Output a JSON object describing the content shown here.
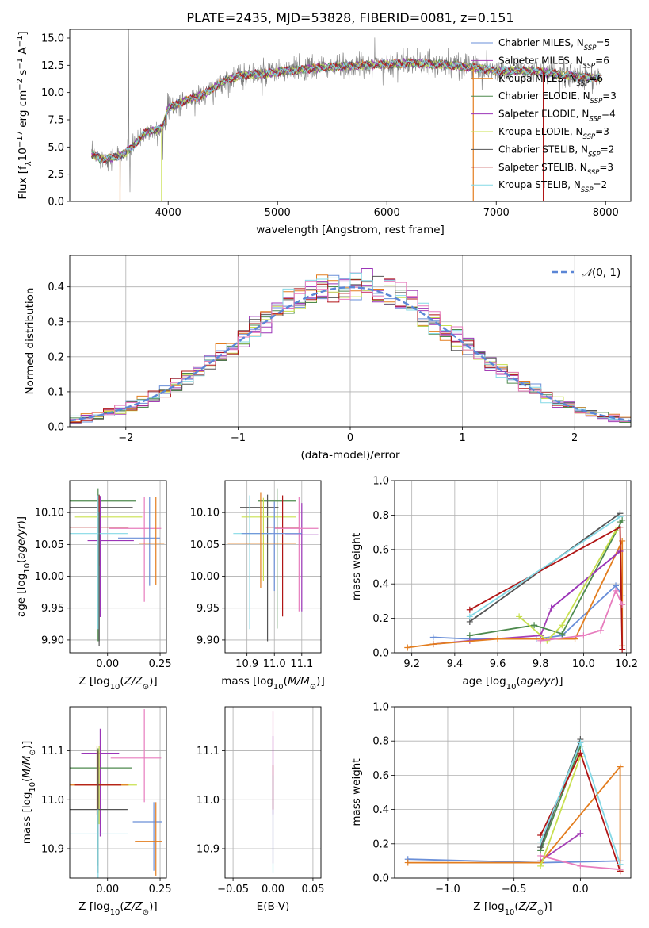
{
  "colors": {
    "Chabrier MILES": "#6a8fd8",
    "Salpeter MILES": "#a43fb5",
    "Kroupa MILES": "#e37d1e",
    "Chabrier ELODIE": "#4e8a4e",
    "Salpeter ELODIE": "#9b35b8",
    "Kroupa ELODIE": "#c8e04e",
    "Chabrier STELIB": "#555555",
    "Salpeter STELIB": "#b01515",
    "Kroupa STELIB": "#84d9e6",
    "spectrum": "#808080",
    "normal": "#5b86d6",
    "pink": "#e77cbd"
  },
  "legend_entries": [
    {
      "key": "Chabrier MILES",
      "label": "Chabrier MILES, N",
      "sub": "SSP",
      "tail": "=5"
    },
    {
      "key": "Salpeter MILES",
      "label": "Salpeter MILES, N",
      "sub": "SSP",
      "tail": "=6"
    },
    {
      "key": "Kroupa MILES",
      "label": "Kroupa MILES, N",
      "sub": "SSP",
      "tail": "=6"
    },
    {
      "key": "Chabrier ELODIE",
      "label": "Chabrier ELODIE, N",
      "sub": "SSP",
      "tail": "=3"
    },
    {
      "key": "Salpeter ELODIE",
      "label": "Salpeter ELODIE, N",
      "sub": "SSP",
      "tail": "=4"
    },
    {
      "key": "Kroupa ELODIE",
      "label": "Kroupa ELODIE, N",
      "sub": "SSP",
      "tail": "=3"
    },
    {
      "key": "Chabrier STELIB",
      "label": "Chabrier STELIB, N",
      "sub": "SSP",
      "tail": "=2"
    },
    {
      "key": "Salpeter STELIB",
      "label": "Salpeter STELIB, N",
      "sub": "SSP",
      "tail": "=3"
    },
    {
      "key": "Kroupa STELIB",
      "label": "Kroupa STELIB, N",
      "sub": "SSP",
      "tail": "=2"
    }
  ],
  "chart_data": [
    {
      "id": "spectrum",
      "type": "line",
      "title": "PLATE=2435, MJD=53828, FIBERID=0081, z=0.151",
      "xlabel": "wavelength [Angstrom, rest frame]",
      "ylabel": "Flux [f_λ 10^-17 erg cm^-2 s^-1 A^-1]",
      "xlim": [
        3100,
        8230
      ],
      "ylim": [
        0,
        15.8
      ],
      "xticks": [
        4000,
        5000,
        6000,
        7000,
        8000
      ],
      "yticks": [
        0.0,
        2.5,
        5.0,
        7.5,
        10.0,
        12.5,
        15.0
      ],
      "continuum": {
        "x": [
          3300,
          3400,
          3500,
          3600,
          3700,
          3800,
          3900,
          3950,
          4000,
          4100,
          4200,
          4300,
          4400,
          4500,
          4600,
          4700,
          4800,
          4900,
          5000,
          5200,
          5400,
          5600,
          5800,
          6000,
          6200,
          6400,
          6600,
          6800,
          7000,
          7200,
          7400,
          7600,
          7800,
          8000
        ],
        "y": [
          4.3,
          3.9,
          4.0,
          4.4,
          5.3,
          6.4,
          6.6,
          6.8,
          8.6,
          9.0,
          9.4,
          9.7,
          10.3,
          11.0,
          11.4,
          11.6,
          11.7,
          11.7,
          11.9,
          12.1,
          12.3,
          12.4,
          12.5,
          12.6,
          12.7,
          12.6,
          12.5,
          12.3,
          12.0,
          12.0,
          11.9,
          11.6,
          11.4,
          11.3
        ]
      },
      "series_names": [
        "Chabrier MILES",
        "Salpeter MILES",
        "Kroupa MILES",
        "Chabrier ELODIE",
        "Salpeter ELODIE",
        "Kroupa ELODIE",
        "Chabrier STELIB",
        "Salpeter STELIB",
        "Kroupa STELIB"
      ],
      "legend_position": "upper right"
    },
    {
      "id": "residuals",
      "type": "histogram",
      "xlabel": "(data-model)/error",
      "ylabel": "Normed distribution",
      "xlim": [
        -2.5,
        2.5
      ],
      "ylim": [
        0,
        0.49
      ],
      "xticks": [
        -2,
        -1,
        0,
        1,
        2
      ],
      "yticks": [
        0.0,
        0.1,
        0.2,
        0.3,
        0.4
      ],
      "bin_width": 0.1,
      "normal_label": "N(0, 1)",
      "legend_position": "upper right",
      "series": [
        "Chabrier MILES",
        "Salpeter MILES",
        "Kroupa MILES",
        "Chabrier ELODIE",
        "Salpeter ELODIE",
        "Kroupa ELODIE",
        "Chabrier STELIB",
        "Salpeter STELIB",
        "Kroupa STELIB",
        "pink"
      ]
    },
    {
      "id": "age_vs_Z",
      "type": "errorbar",
      "xlabel": "Z [log10(Z/Z⊙)]",
      "ylabel": "age  [log10(age/yr)]",
      "xlim": [
        -0.18,
        0.28
      ],
      "ylim": [
        9.88,
        10.15
      ],
      "xticks": [
        0.0,
        0.25
      ],
      "yticks": [
        9.9,
        9.95,
        10.0,
        10.05,
        10.1
      ],
      "points": [
        {
          "key": "Chabrier ELODIE",
          "x": -0.045,
          "xerr": [
            0.14,
            0.18
          ],
          "y": 10.118,
          "yerr": [
            0.22,
            0.02
          ]
        },
        {
          "key": "Chabrier STELIB",
          "x": -0.04,
          "xerr": [
            0.16,
            0.16
          ],
          "y": 10.108,
          "yerr": [
            0.21,
            0.02
          ]
        },
        {
          "key": "Kroupa ELODIE",
          "x": -0.035,
          "xerr": [
            0.12,
            0.2
          ],
          "y": 10.093,
          "yerr": [
            0.07,
            0.03
          ]
        },
        {
          "key": "Salpeter STELIB",
          "x": -0.04,
          "xerr": [
            0.14,
            0.14
          ],
          "y": 10.077,
          "yerr": [
            0.06,
            0.05
          ]
        },
        {
          "key": "Salpeter ELODIE",
          "x": -0.035,
          "xerr": [
            0.06,
            0.16
          ],
          "y": 10.056,
          "yerr": [
            0.12,
            0.07
          ]
        },
        {
          "key": "pink",
          "x": 0.175,
          "xerr": [
            0.17,
            0.08
          ],
          "y": 10.075,
          "yerr": [
            0.115,
            0.05
          ]
        },
        {
          "key": "Kroupa STELIB",
          "x": -0.045,
          "xerr": [
            0.14,
            0.14
          ],
          "y": 10.067,
          "yerr": [
            0.15,
            0.06
          ]
        },
        {
          "key": "Chabrier MILES",
          "x": 0.2,
          "xerr": [
            0.15,
            0.05
          ],
          "y": 10.06,
          "yerr": [
            0.075,
            0.065
          ]
        },
        {
          "key": "Kroupa MILES",
          "x": 0.23,
          "xerr": [
            0.08,
            0.04
          ],
          "y": 10.052,
          "yerr": [
            0.065,
            0.073
          ]
        },
        {
          "key": "Chabrier STELIB",
          "x": -0.04,
          "xerr": [
            0.0,
            0.0
          ],
          "y": 10.0,
          "yerr": [
            0.11,
            0.1
          ]
        }
      ]
    },
    {
      "id": "age_vs_mass",
      "type": "errorbar",
      "xlabel": "mass [log10(M/M⊙)]",
      "ylabel": "",
      "xlim": [
        10.82,
        11.17
      ],
      "ylim": [
        9.88,
        10.15
      ],
      "xticks": [
        10.9,
        11.0,
        11.1
      ],
      "yticks": [
        9.9,
        9.95,
        10.0,
        10.05,
        10.1
      ],
      "points": [
        {
          "key": "Chabrier ELODIE",
          "x": 11.01,
          "xerr": [
            0.07,
            0.07
          ],
          "y": 10.118,
          "yerr": [
            0.2,
            0.02
          ]
        },
        {
          "key": "Chabrier STELIB",
          "x": 10.975,
          "xerr": [
            0.1,
            0.04
          ],
          "y": 10.108,
          "yerr": [
            0.21,
            0.02
          ]
        },
        {
          "key": "Kroupa ELODIE",
          "x": 10.96,
          "xerr": [
            0.08,
            0.12
          ],
          "y": 10.093,
          "yerr": [
            0.1,
            0.03
          ]
        },
        {
          "key": "Salpeter STELIB",
          "x": 11.03,
          "xerr": [
            0.06,
            0.06
          ],
          "y": 10.077,
          "yerr": [
            0.14,
            0.05
          ]
        },
        {
          "key": "Salpeter ELODIE",
          "x": 11.1,
          "xerr": [
            0.06,
            0.06
          ],
          "y": 10.065,
          "yerr": [
            0.12,
            0.05
          ]
        },
        {
          "key": "pink",
          "x": 11.09,
          "xerr": [
            0.09,
            0.07
          ],
          "y": 10.075,
          "yerr": [
            0.13,
            0.05
          ]
        },
        {
          "key": "Kroupa STELIB",
          "x": 10.91,
          "xerr": [
            0.06,
            0.08
          ],
          "y": 10.067,
          "yerr": [
            0.15,
            0.06
          ]
        },
        {
          "key": "Chabrier MILES",
          "x": 11.0,
          "xerr": [
            0.12,
            0.1
          ],
          "y": 10.067,
          "yerr": [
            0.09,
            0.05
          ]
        },
        {
          "key": "Kroupa MILES",
          "x": 10.95,
          "xerr": [
            0.12,
            0.13
          ],
          "y": 10.052,
          "yerr": [
            0.07,
            0.08
          ]
        }
      ]
    },
    {
      "id": "mass_weight_vs_age",
      "type": "line",
      "xlabel": "age  [log10(age/yr)]",
      "ylabel": "mass weight",
      "xlim": [
        9.12,
        10.22
      ],
      "ylim": [
        0,
        1.0
      ],
      "xticks": [
        9.2,
        9.4,
        9.6,
        9.8,
        10.0,
        10.2
      ],
      "yticks": [
        0.0,
        0.2,
        0.4,
        0.6,
        0.8,
        1.0
      ],
      "series": [
        {
          "key": "Chabrier MILES",
          "x": [
            9.3,
            9.47,
            9.78,
            9.9,
            10.15,
            10.18
          ],
          "y": [
            0.09,
            0.08,
            0.08,
            0.1,
            0.39,
            0.33
          ]
        },
        {
          "key": "Salpeter MILES",
          "x": [
            9.3,
            9.47,
            9.8,
            9.85,
            10.17
          ],
          "y": [
            0.05,
            0.07,
            0.1,
            0.26,
            0.59
          ]
        },
        {
          "key": "Kroupa MILES",
          "x": [
            9.18,
            9.3,
            9.6,
            9.96,
            10.18,
            10.18
          ],
          "y": [
            0.03,
            0.05,
            0.08,
            0.08,
            0.65,
            0.04
          ]
        },
        {
          "key": "Chabrier ELODIE",
          "x": [
            9.47,
            9.77,
            9.9,
            10.18,
            10.17
          ],
          "y": [
            0.1,
            0.16,
            0.11,
            0.77,
            0.76
          ]
        },
        {
          "key": "Salpeter ELODIE",
          "x": [
            9.85,
            10.17
          ],
          "y": [
            0.26,
            0.59
          ]
        },
        {
          "key": "Kroupa ELODIE",
          "x": [
            9.7,
            9.83,
            9.9,
            10.15
          ],
          "y": [
            0.21,
            0.07,
            0.16,
            0.71
          ]
        },
        {
          "key": "Chabrier STELIB",
          "x": [
            9.47,
            10.17
          ],
          "y": [
            0.18,
            0.81
          ]
        },
        {
          "key": "Salpeter STELIB",
          "x": [
            9.47,
            10.17,
            10.18
          ],
          "y": [
            0.25,
            0.73,
            0.02
          ]
        },
        {
          "key": "Kroupa STELIB",
          "x": [
            9.47,
            10.17
          ],
          "y": [
            0.21,
            0.79
          ]
        },
        {
          "key": "pink",
          "x": [
            9.8,
            10.0,
            10.08,
            10.15,
            10.18
          ],
          "y": [
            0.07,
            0.1,
            0.13,
            0.36,
            0.28
          ]
        }
      ]
    },
    {
      "id": "mass_vs_Z",
      "type": "errorbar",
      "xlabel": "Z [log10(Z/Z⊙)]",
      "ylabel": "mass [log10(M/M⊙)]",
      "xlim": [
        -0.18,
        0.28
      ],
      "ylim": [
        10.84,
        11.19
      ],
      "xticks": [
        0.0,
        0.25
      ],
      "yticks": [
        10.9,
        11.0,
        11.1
      ],
      "points": [
        {
          "key": "Salpeter ELODIE",
          "x": -0.035,
          "xerr": [
            0.09,
            0.09
          ],
          "y": 11.095,
          "yerr": [
            0.17,
            0.05
          ]
        },
        {
          "key": "pink",
          "x": 0.175,
          "xerr": [
            0.16,
            0.08
          ],
          "y": 11.085,
          "yerr": [
            0.09,
            0.1
          ]
        },
        {
          "key": "Chabrier ELODIE",
          "x": -0.045,
          "xerr": [
            0.16,
            0.16
          ],
          "y": 11.065,
          "yerr": [
            0.2,
            0.04
          ]
        },
        {
          "key": "Kroupa ELODIE",
          "x": -0.04,
          "xerr": [
            0.12,
            0.18
          ],
          "y": 11.03,
          "yerr": [
            0.08,
            0.08
          ]
        },
        {
          "key": "Kroupa MILES",
          "x": -0.05,
          "xerr": [
            0.15,
            0.15
          ],
          "y": 11.03,
          "yerr": [
            0.06,
            0.08
          ]
        },
        {
          "key": "Salpeter STELIB",
          "x": -0.045,
          "xerr": [
            0.11,
            0.11
          ],
          "y": 11.03,
          "yerr": [
            0.08,
            0.07
          ]
        },
        {
          "key": "Chabrier STELIB",
          "x": -0.045,
          "xerr": [
            0.14,
            0.14
          ],
          "y": 10.98,
          "yerr": [
            0.13,
            0.12
          ]
        },
        {
          "key": "Chabrier MILES",
          "x": 0.22,
          "xerr": [
            0.1,
            0.04
          ],
          "y": 10.955,
          "yerr": [
            0.1,
            0.04
          ]
        },
        {
          "key": "Kroupa STELIB",
          "x": -0.045,
          "xerr": [
            0.14,
            0.14
          ],
          "y": 10.93,
          "yerr": [
            0.1,
            0.05
          ]
        },
        {
          "key": "Kroupa MILES",
          "x": 0.23,
          "xerr": [
            0.1,
            0.03
          ],
          "y": 10.915,
          "yerr": [
            0.07,
            0.08
          ]
        }
      ]
    },
    {
      "id": "mass_vs_EBV",
      "type": "errorbar",
      "xlabel": "E(B-V)",
      "ylabel": "",
      "xlim": [
        -0.06,
        0.06
      ],
      "ylim": [
        10.84,
        11.19
      ],
      "xticks": [
        -0.05,
        0.0,
        0.05
      ],
      "yticks": [
        10.9,
        11.0,
        11.1
      ],
      "points": [
        {
          "key": "pink",
          "x": 0.0,
          "xerr": [
            0,
            0
          ],
          "y": 11.07,
          "yerr": [
            0.2,
            0.11
          ]
        },
        {
          "key": "Salpeter ELODIE",
          "x": 0.0,
          "xerr": [
            0,
            0
          ],
          "y": 11.07,
          "yerr": [
            0.1,
            0.06
          ]
        },
        {
          "key": "Kroupa STELIB",
          "x": 0.0,
          "xerr": [
            0,
            0
          ],
          "y": 10.95,
          "yerr": [
            0.1,
            0.1
          ]
        },
        {
          "key": "Salpeter STELIB",
          "x": 0.0,
          "xerr": [
            0,
            0
          ],
          "y": 11.03,
          "yerr": [
            0.05,
            0.04
          ]
        }
      ]
    },
    {
      "id": "mass_weight_vs_Z",
      "type": "line",
      "xlabel": "Z [log10(Z/Z⊙)]",
      "ylabel": "mass weight",
      "xlim": [
        -1.4,
        0.38
      ],
      "ylim": [
        0,
        1.0
      ],
      "xticks": [
        -1.0,
        -0.5,
        0.0
      ],
      "yticks": [
        0.0,
        0.2,
        0.4,
        0.6,
        0.8,
        1.0
      ],
      "series": [
        {
          "key": "Chabrier MILES",
          "x": [
            -1.3,
            -0.3,
            0.3
          ],
          "y": [
            0.11,
            0.09,
            0.1
          ]
        },
        {
          "key": "Salpeter MILES",
          "x": [
            -0.3,
            0.0
          ],
          "y": [
            0.1,
            0.26
          ]
        },
        {
          "key": "Kroupa MILES",
          "x": [
            -1.3,
            -0.3,
            0.3,
            0.3
          ],
          "y": [
            0.09,
            0.09,
            0.65,
            0.04
          ]
        },
        {
          "key": "Chabrier ELODIE",
          "x": [
            -0.3,
            0.0
          ],
          "y": [
            0.16,
            0.77
          ]
        },
        {
          "key": "Kroupa ELODIE",
          "x": [
            -0.3,
            0.0
          ],
          "y": [
            0.07,
            0.71
          ]
        },
        {
          "key": "Chabrier STELIB",
          "x": [
            -0.3,
            0.0
          ],
          "y": [
            0.18,
            0.81
          ]
        },
        {
          "key": "Salpeter STELIB",
          "x": [
            -0.3,
            0.0,
            0.3
          ],
          "y": [
            0.25,
            0.73,
            0.04
          ]
        },
        {
          "key": "Kroupa STELIB",
          "x": [
            -0.3,
            0.0,
            0.3
          ],
          "y": [
            0.21,
            0.79,
            0.08
          ]
        },
        {
          "key": "pink",
          "x": [
            -0.3,
            0.0,
            0.3
          ],
          "y": [
            0.13,
            0.07,
            0.05
          ]
        }
      ]
    }
  ]
}
